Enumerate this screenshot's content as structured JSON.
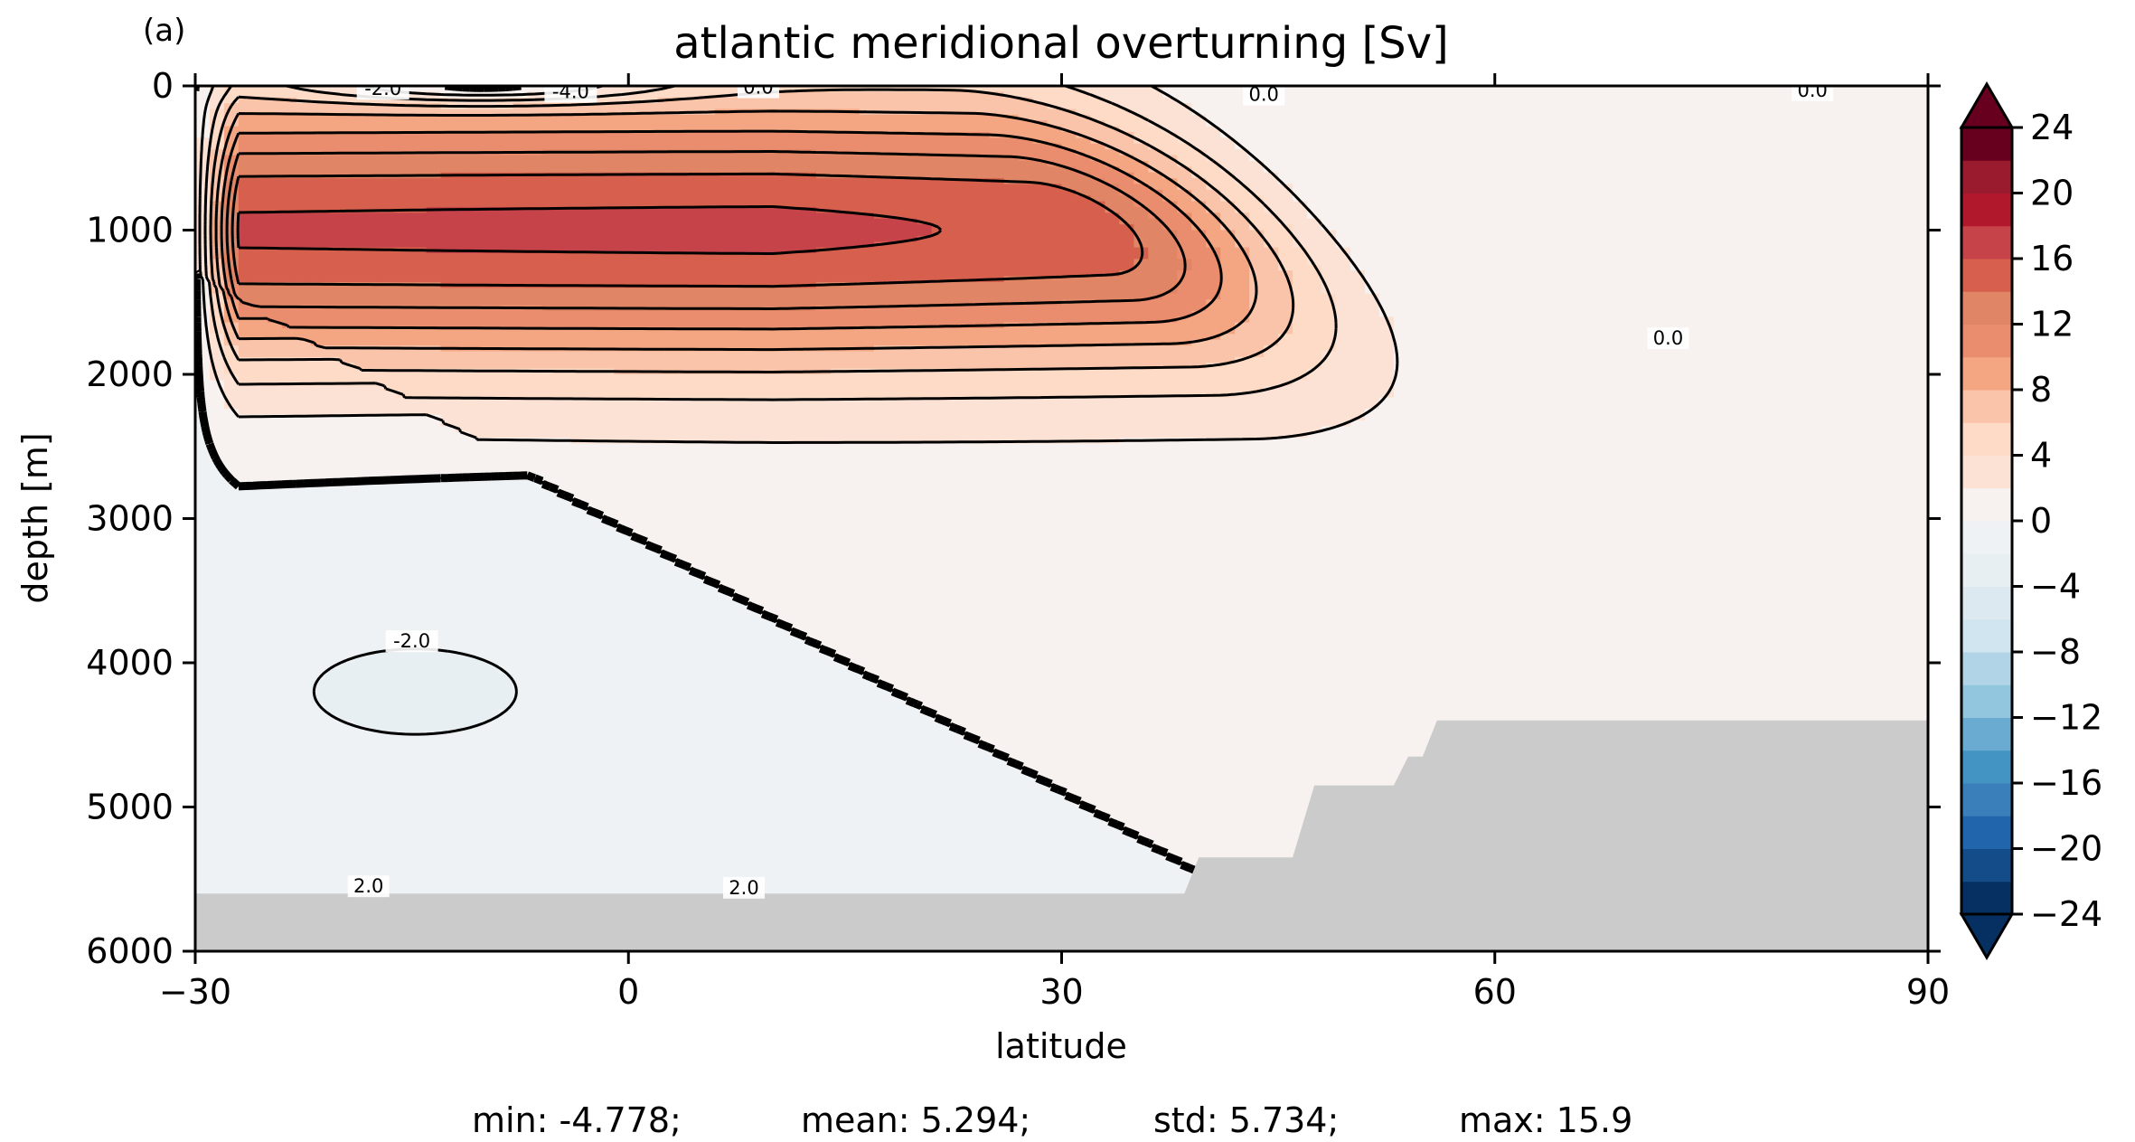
{
  "panel_label": "(a)",
  "chart_data": {
    "type": "contour",
    "title": "atlantic meridional overturning [Sv]",
    "xlabel": "latitude",
    "ylabel": "depth [m]",
    "xlim": [
      -30,
      90
    ],
    "ylim": [
      6000,
      0
    ],
    "x_ticks": [
      -30,
      0,
      30,
      60,
      90
    ],
    "x_tick_labels": [
      "−30",
      "0",
      "30",
      "60",
      "90"
    ],
    "y_ticks": [
      0,
      1000,
      2000,
      3000,
      4000,
      5000,
      6000
    ],
    "y_tick_labels": [
      "0",
      "1000",
      "2000",
      "3000",
      "4000",
      "5000",
      "6000"
    ],
    "contour_interval": 2,
    "zero_contour_emphasized": true,
    "colormap": "RdBu_r",
    "colorbar": {
      "levels": [
        -24,
        -22,
        -20,
        -18,
        -16,
        -14,
        -12,
        -10,
        -8,
        -6,
        -4,
        -2,
        0,
        2,
        4,
        6,
        8,
        10,
        12,
        14,
        16,
        18,
        20,
        22,
        24
      ],
      "ticks": [
        24,
        20,
        16,
        12,
        8,
        4,
        0,
        -4,
        -8,
        -12,
        -16,
        -20,
        -24
      ],
      "tick_labels": [
        "24",
        "20",
        "16",
        "12",
        "8",
        "4",
        "0",
        "−4",
        "−8",
        "−12",
        "−16",
        "−20",
        "−24"
      ],
      "extend": "both",
      "colors": [
        "#053061",
        "#134c88",
        "#2166ac",
        "#3a7fb9",
        "#4393c3",
        "#6aabd1",
        "#92c5de",
        "#b1d5e7",
        "#d1e5f0",
        "#dde9f0",
        "#e8eff3",
        "#eef2f5",
        "#f7f2ef",
        "#fbe2d4",
        "#fddbc7",
        "#f9c4a9",
        "#f4a582",
        "#ea8d6e",
        "#e08565",
        "#d6604d",
        "#c6434a",
        "#b2182b",
        "#991b2d",
        "#67001f"
      ]
    },
    "max_overturning_core": {
      "value": 15.9,
      "lat": 10,
      "depth": 1000
    },
    "contour_labels": [
      {
        "text": "-2.0",
        "lat": -17,
        "depth": 20
      },
      {
        "text": "-4.0",
        "lat": -4,
        "depth": 40
      },
      {
        "text": "0.0",
        "lat": 9,
        "depth": 10
      },
      {
        "text": "0.0",
        "lat": 44,
        "depth": 60
      },
      {
        "text": "0.0",
        "lat": 82,
        "depth": 30
      },
      {
        "text": "0.0",
        "lat": 72,
        "depth": 1750
      },
      {
        "text": "-2.0",
        "lat": -15,
        "depth": 3850
      },
      {
        "text": "2.0",
        "lat": -18,
        "depth": 5550
      },
      {
        "text": "2.0",
        "lat": 8,
        "depth": 5560
      }
    ],
    "bathymetry_color": "#cbcbcb",
    "stats": {
      "min": "-4.778",
      "mean": "5.294",
      "std": "5.734",
      "max": "15.9"
    }
  },
  "stats_labels": {
    "min": "min: -4.778;",
    "mean": "mean: 5.294;",
    "std": "std: 5.734;",
    "max": "max: 15.9"
  }
}
